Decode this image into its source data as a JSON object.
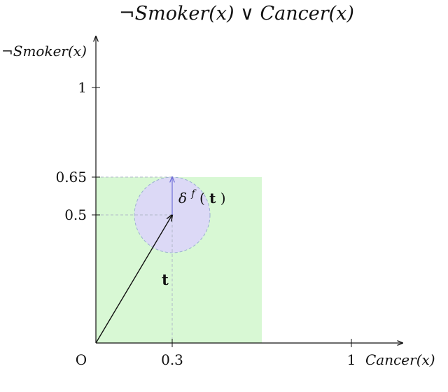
{
  "title": "¬Smoker(x) ∨ Cancer(x)",
  "x_axis": {
    "label": "Cancer(x)",
    "ticks": [
      "0.3",
      "1"
    ]
  },
  "y_axis": {
    "label": "¬Smoker(x)",
    "ticks": [
      "0.5",
      "0.65",
      "1"
    ]
  },
  "origin_label": "O",
  "vector_label": "t",
  "delta_label": {
    "prefix": "δ",
    "superscript": "f",
    "argument": "t"
  },
  "colors": {
    "region_fill": "#d8f8d4",
    "circle_fill": "#dcd9f6",
    "arrow_blue": "#6f6fd8",
    "axis": "#111111"
  },
  "chart_data": {
    "type": "vector-diagram",
    "region": {
      "x_range": [
        0,
        0.65
      ],
      "y_range": [
        0,
        0.65
      ]
    },
    "vector_t": {
      "from": [
        0,
        0
      ],
      "to": [
        0.3,
        0.5
      ]
    },
    "perturbation_ball": {
      "center": [
        0.3,
        0.5
      ],
      "radius": 0.15
    },
    "delta_arrow": {
      "from": [
        0.3,
        0.5
      ],
      "to": [
        0.3,
        0.65
      ]
    }
  }
}
